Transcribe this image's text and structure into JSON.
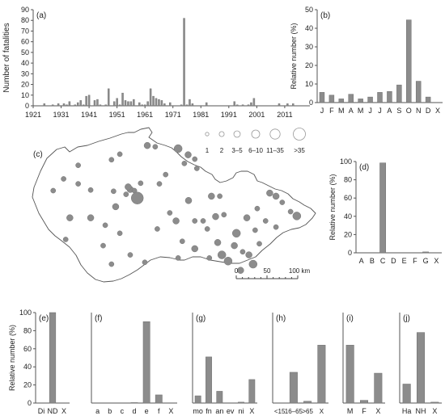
{
  "chart_data": [
    {
      "id": "a",
      "panel_label": "(a)",
      "type": "bar",
      "ylabel": "Number of fatalities",
      "ylim": [
        0,
        90
      ],
      "yticks": [
        0,
        10,
        20,
        30,
        40,
        50,
        60,
        70,
        80,
        90
      ],
      "xlim": [
        1921,
        2020
      ],
      "xticks": [
        "1921",
        "1931",
        "1941",
        "1951",
        "1961",
        "1971",
        "1981",
        "1991",
        "2001",
        "2011"
      ],
      "x": [
        1921,
        1922,
        1923,
        1924,
        1925,
        1926,
        1927,
        1928,
        1929,
        1930,
        1931,
        1932,
        1933,
        1934,
        1935,
        1936,
        1937,
        1938,
        1939,
        1940,
        1941,
        1942,
        1943,
        1944,
        1945,
        1946,
        1947,
        1948,
        1949,
        1950,
        1951,
        1952,
        1953,
        1954,
        1955,
        1956,
        1957,
        1958,
        1959,
        1960,
        1961,
        1962,
        1963,
        1964,
        1965,
        1966,
        1967,
        1968,
        1969,
        1970,
        1971,
        1972,
        1973,
        1974,
        1975,
        1976,
        1977,
        1978,
        1979,
        1980,
        1981,
        1982,
        1983,
        1984,
        1985,
        1986,
        1987,
        1988,
        1989,
        1990,
        1991,
        1992,
        1993,
        1994,
        1995,
        1996,
        1997,
        1998,
        1999,
        2000,
        2001,
        2002,
        2003,
        2004,
        2005,
        2006,
        2007,
        2008,
        2009,
        2010,
        2011,
        2012,
        2013,
        2014,
        2015,
        2016,
        2017,
        2018,
        2019
      ],
      "values": [
        0,
        0,
        0,
        0,
        2,
        0,
        0,
        1,
        0,
        2,
        0,
        2,
        1,
        4,
        0,
        1,
        3,
        5,
        1,
        9,
        10,
        0,
        5,
        6,
        1,
        0,
        1,
        16,
        0,
        4,
        7,
        1,
        12,
        5,
        4,
        4,
        6,
        0,
        3,
        1,
        1,
        4,
        16,
        9,
        7,
        6,
        5,
        2,
        0,
        3,
        0,
        0,
        0,
        1,
        82,
        1,
        6,
        2,
        0,
        0,
        0,
        0,
        3,
        0,
        0,
        0,
        0,
        0,
        0,
        0,
        0,
        0,
        4,
        1,
        0,
        1,
        0,
        1,
        3,
        7,
        0,
        0,
        0,
        0,
        0,
        0,
        0,
        0,
        2,
        0,
        0,
        2,
        0,
        2,
        0,
        0,
        0,
        0,
        0
      ]
    },
    {
      "id": "b",
      "panel_label": "(b)",
      "type": "bar",
      "ylabel": "Relative number (%)",
      "ylim": [
        0,
        50
      ],
      "yticks": [
        0,
        10,
        20,
        30,
        40,
        50
      ],
      "categories": [
        "J",
        "F",
        "M",
        "A",
        "M",
        "J",
        "J",
        "A",
        "S",
        "O",
        "N",
        "D",
        "X"
      ],
      "values": [
        5.5,
        4.0,
        2.0,
        4.5,
        2.0,
        3.0,
        5.5,
        6.0,
        9.5,
        44.5,
        11.5,
        3.0,
        0
      ]
    },
    {
      "id": "c",
      "panel_label": "(c)",
      "type": "scatter",
      "legend_labels": [
        "1",
        "2",
        "3–5",
        "6–10",
        "11–35",
        ">35"
      ],
      "scale_labels": [
        "0",
        "50",
        "100 km"
      ],
      "points": [
        {
          "lon": 14.45,
          "lat": 50.06,
          "n": 2
        },
        {
          "lon": 14.4,
          "lat": 50.1,
          "n": 2
        },
        {
          "lon": 14.55,
          "lat": 50.04,
          "n": 1
        },
        {
          "lon": 14.35,
          "lat": 49.98,
          "n": 1
        },
        {
          "lon": 14.05,
          "lat": 50.03,
          "n": 1
        },
        {
          "lon": 14.7,
          "lat": 50.16,
          "n": 1
        },
        {
          "lon": 13.2,
          "lat": 50.45,
          "n": 1
        },
        {
          "lon": 13.5,
          "lat": 50.05,
          "n": 1
        },
        {
          "lon": 14.2,
          "lat": 50.63,
          "n": 1
        },
        {
          "lon": 14.0,
          "lat": 50.54,
          "n": 1
        },
        {
          "lon": 14.86,
          "lat": 50.77,
          "n": 2
        },
        {
          "lon": 15.05,
          "lat": 50.75,
          "n": 1
        },
        {
          "lon": 15.6,
          "lat": 50.72,
          "n": 3
        },
        {
          "lon": 15.84,
          "lat": 50.62,
          "n": 2
        },
        {
          "lon": 16.0,
          "lat": 50.55,
          "n": 1
        },
        {
          "lon": 15.75,
          "lat": 50.48,
          "n": 1
        },
        {
          "lon": 15.3,
          "lat": 50.3,
          "n": 1
        },
        {
          "lon": 15.15,
          "lat": 50.15,
          "n": 1
        },
        {
          "lon": 16.05,
          "lat": 50.4,
          "n": 1
        },
        {
          "lon": 12.85,
          "lat": 50.23,
          "n": 1
        },
        {
          "lon": 12.6,
          "lat": 50.04,
          "n": 1
        },
        {
          "lon": 13.0,
          "lat": 49.6,
          "n": 2
        },
        {
          "lon": 13.5,
          "lat": 49.6,
          "n": 2
        },
        {
          "lon": 13.85,
          "lat": 49.48,
          "n": 1
        },
        {
          "lon": 14.1,
          "lat": 49.78,
          "n": 2
        },
        {
          "lon": 14.2,
          "lat": 49.35,
          "n": 1
        },
        {
          "lon": 13.8,
          "lat": 49.15,
          "n": 1
        },
        {
          "lon": 12.9,
          "lat": 49.25,
          "n": 1
        },
        {
          "lon": 14.45,
          "lat": 49.0,
          "n": 1
        },
        {
          "lon": 14.0,
          "lat": 48.85,
          "n": 1
        },
        {
          "lon": 15.1,
          "lat": 49.42,
          "n": 1
        },
        {
          "lon": 15.4,
          "lat": 49.68,
          "n": 1
        },
        {
          "lon": 15.85,
          "lat": 49.88,
          "n": 2
        },
        {
          "lon": 15.55,
          "lat": 49.55,
          "n": 2
        },
        {
          "lon": 16.4,
          "lat": 49.95,
          "n": 2
        },
        {
          "lon": 16.6,
          "lat": 49.95,
          "n": 1
        },
        {
          "lon": 16.5,
          "lat": 49.62,
          "n": 2
        },
        {
          "lon": 16.7,
          "lat": 49.65,
          "n": 1
        },
        {
          "lon": 16.3,
          "lat": 49.42,
          "n": 1
        },
        {
          "lon": 15.7,
          "lat": 49.22,
          "n": 1
        },
        {
          "lon": 16.0,
          "lat": 49.1,
          "n": 2
        },
        {
          "lon": 16.55,
          "lat": 49.2,
          "n": 2
        },
        {
          "lon": 16.65,
          "lat": 49.0,
          "n": 3
        },
        {
          "lon": 16.95,
          "lat": 49.15,
          "n": 2
        },
        {
          "lon": 17.0,
          "lat": 49.35,
          "n": 3
        },
        {
          "lon": 16.8,
          "lat": 48.9,
          "n": 3
        },
        {
          "lon": 17.1,
          "lat": 48.75,
          "n": 2
        },
        {
          "lon": 17.3,
          "lat": 49.0,
          "n": 2
        },
        {
          "lon": 17.4,
          "lat": 48.85,
          "n": 3
        },
        {
          "lon": 17.55,
          "lat": 49.18,
          "n": 1
        },
        {
          "lon": 17.25,
          "lat": 49.6,
          "n": 2
        },
        {
          "lon": 17.45,
          "lat": 49.4,
          "n": 1
        },
        {
          "lon": 17.8,
          "lat": 50.0,
          "n": 2
        },
        {
          "lon": 17.95,
          "lat": 49.95,
          "n": 2
        },
        {
          "lon": 18.1,
          "lat": 49.85,
          "n": 1
        },
        {
          "lon": 18.3,
          "lat": 49.7,
          "n": 1
        },
        {
          "lon": 18.45,
          "lat": 49.63,
          "n": 3
        },
        {
          "lon": 17.5,
          "lat": 49.75,
          "n": 1
        },
        {
          "lon": 17.95,
          "lat": 49.45,
          "n": 1
        },
        {
          "lon": 17.7,
          "lat": 49.55,
          "n": 1
        },
        {
          "lon": 16.35,
          "lat": 48.95,
          "n": 1
        },
        {
          "lon": 15.6,
          "lat": 48.95,
          "n": 1
        },
        {
          "lon": 14.8,
          "lat": 48.88,
          "n": 1
        },
        {
          "lon": 13.2,
          "lat": 50.15,
          "n": 1
        },
        {
          "lon": 16.2,
          "lat": 49.55,
          "n": 1
        },
        {
          "lon": 17.15,
          "lat": 49.05,
          "n": 1
        },
        {
          "lon": 16.0,
          "lat": 49.55,
          "n": 1
        },
        {
          "lon": 14.62,
          "lat": 49.92,
          "n": 5
        }
      ]
    },
    {
      "id": "d",
      "panel_label": "(d)",
      "type": "bar",
      "ylabel": "Relative number (%)",
      "ylim": [
        0,
        100
      ],
      "yticks": [
        0,
        20,
        40,
        60,
        80,
        100
      ],
      "categories": [
        "A",
        "B",
        "C",
        "D",
        "E",
        "F",
        "G",
        "X"
      ],
      "values": [
        0,
        0,
        98.5,
        0,
        0,
        0,
        1.0,
        0
      ]
    },
    {
      "id": "e",
      "panel_label": "(e)",
      "type": "bar",
      "ylabel": "Relative number (%)",
      "ylim": [
        0,
        100
      ],
      "yticks": [
        0,
        20,
        40,
        60,
        80,
        100
      ],
      "categories": [
        "Di",
        "ND",
        "X"
      ],
      "values": [
        0,
        100,
        0
      ]
    },
    {
      "id": "f",
      "panel_label": "(f)",
      "type": "bar",
      "ylim": [
        0,
        100
      ],
      "categories": [
        "a",
        "b",
        "c",
        "d",
        "e",
        "f",
        "X"
      ],
      "values": [
        0,
        0,
        0,
        0.5,
        90,
        9,
        0
      ]
    },
    {
      "id": "g",
      "panel_label": "(g)",
      "type": "bar",
      "ylim": [
        0,
        100
      ],
      "categories": [
        "mo",
        "fn",
        "an",
        "ev",
        "ni",
        "X"
      ],
      "values": [
        8,
        51,
        13,
        0,
        1,
        26
      ]
    },
    {
      "id": "h",
      "panel_label": "(h)",
      "type": "bar",
      "ylim": [
        0,
        100
      ],
      "categories": [
        "<15",
        "16–65",
        ">65",
        "X"
      ],
      "values": [
        0,
        34,
        2,
        64
      ]
    },
    {
      "id": "i",
      "panel_label": "(i)",
      "type": "bar",
      "ylim": [
        0,
        100
      ],
      "categories": [
        "M",
        "F",
        "X"
      ],
      "values": [
        64,
        3,
        33
      ]
    },
    {
      "id": "j",
      "panel_label": "(j)",
      "type": "bar",
      "ylim": [
        0,
        100
      ],
      "categories": [
        "Ha",
        "NH",
        "X"
      ],
      "values": [
        21,
        78,
        1
      ]
    }
  ],
  "colors": {
    "bar": "#8c8c8c",
    "bar_edge": "#6e6e6e",
    "axis": "#555555",
    "map_outline": "#555555"
  }
}
